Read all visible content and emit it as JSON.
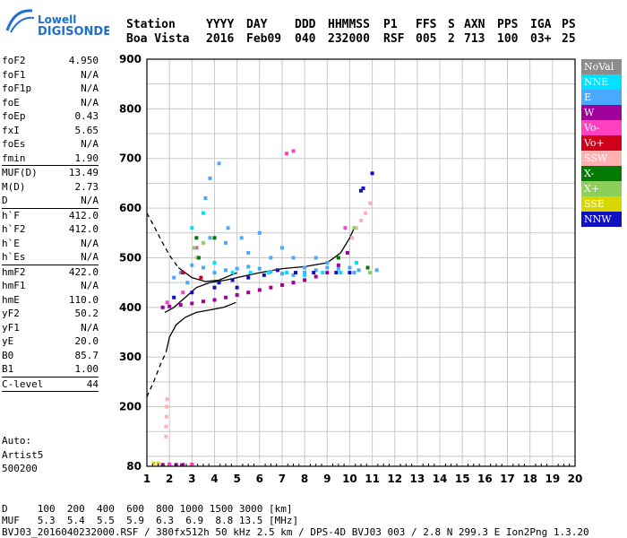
{
  "logo": {
    "line1": "Lowell",
    "line2": "DIGISONDE"
  },
  "header": {
    "labels": [
      "Station",
      "YYYY",
      "DAY",
      "DDD",
      "HHMMSS",
      "P1",
      "FFS",
      "S",
      "AXN",
      "PPS",
      "IGA",
      "PS"
    ],
    "values": [
      "Boa Vista",
      "2016",
      "Feb09",
      "040",
      "232000",
      "RSF",
      "005",
      "2",
      "713",
      "100",
      "03+",
      "25"
    ]
  },
  "params": [
    {
      "key": "foF2",
      "value": "4.950"
    },
    {
      "key": "foF1",
      "value": "N/A"
    },
    {
      "key": "foF1p",
      "value": "N/A"
    },
    {
      "key": "foE",
      "value": "N/A"
    },
    {
      "key": "foEp",
      "value": "0.43"
    },
    {
      "key": "fxI",
      "value": "5.65"
    },
    {
      "key": "foEs",
      "value": "N/A"
    },
    {
      "key": "fmin",
      "value": "1.90"
    },
    {
      "key": "MUF(D)",
      "value": "13.49"
    },
    {
      "key": "M(D)",
      "value": "2.73"
    },
    {
      "key": "D",
      "value": "N/A"
    },
    {
      "key": "h`F",
      "value": "412.0"
    },
    {
      "key": "h`F2",
      "value": "412.0"
    },
    {
      "key": "h`E",
      "value": "N/A"
    },
    {
      "key": "h`Es",
      "value": "N/A"
    },
    {
      "key": "hmF2",
      "value": "422.0"
    },
    {
      "key": "hmF1",
      "value": "N/A"
    },
    {
      "key": "hmE",
      "value": "110.0"
    },
    {
      "key": "yF2",
      "value": "50.2"
    },
    {
      "key": "yF1",
      "value": "N/A"
    },
    {
      "key": "yE",
      "value": "20.0"
    },
    {
      "key": "B0",
      "value": "85.7"
    },
    {
      "key": "B1",
      "value": "1.00"
    },
    {
      "key": "C-level",
      "value": "44"
    }
  ],
  "auto": {
    "line1": "Auto:",
    "line2": "Artist5",
    "line3": "500200"
  },
  "legend": [
    {
      "label": "NoVal",
      "color": "#8c8c8c"
    },
    {
      "label": "NNE",
      "color": "#00e0ff"
    },
    {
      "label": "E",
      "color": "#4aa8ff"
    },
    {
      "label": "W",
      "color": "#a0009a"
    },
    {
      "label": "Vo-",
      "color": "#ff40c0"
    },
    {
      "label": "Vo+",
      "color": "#d0001a"
    },
    {
      "label": "SSW",
      "color": "#ffb0b0"
    },
    {
      "label": "X-",
      "color": "#007a00"
    },
    {
      "label": "X+",
      "color": "#8cd05a"
    },
    {
      "label": "SSE",
      "color": "#d8d800"
    },
    {
      "label": "NNW",
      "color": "#1010c0"
    }
  ],
  "bottom": {
    "d_line": "D     100  200  400  600  800 1000 1500 3000 [km]",
    "muf_line": "MUF   5.3  5.4  5.5  5.9  6.3  6.9  8.8 13.5 [MHz]",
    "footer": "BVJ03_2016040232000.RSF / 380fx512h 50 kHz 2.5 km / DPS-4D BVJ03 003 / 2.8 N 299.3 E Ion2Png 1.3.20"
  },
  "chart_data": {
    "type": "scatter",
    "xlim": [
      1,
      20
    ],
    "ylim": [
      80,
      900
    ],
    "x_ticks": [
      1,
      2,
      3,
      4,
      5,
      6,
      7,
      8,
      9,
      10,
      11,
      12,
      13,
      14,
      15,
      16,
      17,
      18,
      19,
      20
    ],
    "y_ticks": [
      80,
      200,
      300,
      400,
      500,
      600,
      700,
      800,
      900
    ],
    "grid": true,
    "series": [
      {
        "name": "E",
        "color": "#4aa8ff",
        "points": [
          [
            2.5,
            470
          ],
          [
            3.0,
            485
          ],
          [
            3.5,
            480
          ],
          [
            4.0,
            470
          ],
          [
            4.5,
            475
          ],
          [
            5.0,
            478
          ],
          [
            5.5,
            482
          ],
          [
            6.0,
            478
          ],
          [
            6.5,
            472
          ],
          [
            7.0,
            468
          ],
          [
            7.5,
            465
          ],
          [
            8.0,
            470
          ],
          [
            8.5,
            475
          ],
          [
            9.0,
            480
          ],
          [
            9.5,
            478
          ],
          [
            10.0,
            480
          ],
          [
            10.4,
            475
          ],
          [
            3.2,
            520
          ],
          [
            3.8,
            540
          ],
          [
            4.5,
            530
          ],
          [
            5.5,
            510
          ],
          [
            6.5,
            500
          ],
          [
            8.5,
            500
          ],
          [
            9.5,
            500
          ],
          [
            3.6,
            620
          ],
          [
            3.8,
            660
          ],
          [
            4.2,
            690
          ],
          [
            4.6,
            560
          ],
          [
            5.2,
            540
          ],
          [
            6.0,
            550
          ],
          [
            7.0,
            520
          ],
          [
            9.0,
            490
          ],
          [
            10.2,
            470
          ],
          [
            11.2,
            475
          ],
          [
            7.5,
            500
          ],
          [
            8.0,
            480
          ],
          [
            2.8,
            450
          ],
          [
            2.2,
            460
          ]
        ]
      },
      {
        "name": "NNE",
        "color": "#00e0ff",
        "points": [
          [
            3.3,
            500
          ],
          [
            4.0,
            490
          ],
          [
            4.8,
            470
          ],
          [
            5.6,
            470
          ],
          [
            6.4,
            470
          ],
          [
            7.2,
            470
          ],
          [
            8.0,
            465
          ],
          [
            8.8,
            470
          ],
          [
            9.6,
            470
          ],
          [
            10.3,
            490
          ],
          [
            3.0,
            560
          ],
          [
            3.5,
            590
          ]
        ]
      },
      {
        "name": "W",
        "color": "#a0009a",
        "points": [
          [
            1.7,
            400
          ],
          [
            2.0,
            402
          ],
          [
            2.5,
            405
          ],
          [
            3.0,
            408
          ],
          [
            3.5,
            412
          ],
          [
            4.0,
            415
          ],
          [
            4.5,
            420
          ],
          [
            5.0,
            425
          ],
          [
            5.5,
            430
          ],
          [
            6.0,
            435
          ],
          [
            6.5,
            440
          ],
          [
            7.0,
            445
          ],
          [
            7.5,
            450
          ],
          [
            8.0,
            455
          ],
          [
            8.5,
            462
          ],
          [
            9.0,
            470
          ],
          [
            9.5,
            485
          ],
          [
            9.9,
            510
          ],
          [
            1.7,
            83
          ],
          [
            2.0,
            83
          ],
          [
            2.3,
            83
          ],
          [
            2.6,
            83
          ],
          [
            3.0,
            83
          ]
        ]
      },
      {
        "name": "Vo-",
        "color": "#ff40c0",
        "points": [
          [
            1.9,
            410
          ],
          [
            2.6,
            430
          ],
          [
            3.2,
            520
          ],
          [
            7.2,
            710
          ],
          [
            7.5,
            715
          ],
          [
            9.8,
            560
          ],
          [
            2.0,
            84
          ],
          [
            3.0,
            84
          ]
        ]
      },
      {
        "name": "Vo+",
        "color": "#d0001a",
        "points": [
          [
            2.6,
            470
          ],
          [
            3.4,
            460
          ]
        ]
      },
      {
        "name": "SSW",
        "color": "#ffb0b0",
        "points": [
          [
            1.85,
            140
          ],
          [
            1.85,
            160
          ],
          [
            1.87,
            180
          ],
          [
            1.88,
            200
          ],
          [
            1.9,
            215
          ],
          [
            10.1,
            540
          ],
          [
            10.3,
            560
          ],
          [
            10.5,
            575
          ],
          [
            10.7,
            590
          ],
          [
            10.9,
            610
          ],
          [
            3.2,
            500
          ]
        ]
      },
      {
        "name": "X-",
        "color": "#007a00",
        "points": [
          [
            3.2,
            540
          ],
          [
            4.0,
            540
          ],
          [
            3.3,
            500
          ],
          [
            10.8,
            480
          ],
          [
            9.5,
            500
          ]
        ]
      },
      {
        "name": "X+",
        "color": "#8cd05a",
        "points": [
          [
            3.1,
            520
          ],
          [
            3.5,
            530
          ],
          [
            10.9,
            470
          ],
          [
            10.2,
            560
          ]
        ]
      },
      {
        "name": "SSE",
        "color": "#d8d800",
        "points": [
          [
            1.3,
            86
          ],
          [
            1.5,
            86
          ]
        ]
      },
      {
        "name": "NNW",
        "color": "#1010c0",
        "points": [
          [
            2.2,
            420
          ],
          [
            3.0,
            430
          ],
          [
            4.0,
            440
          ],
          [
            4.8,
            455
          ],
          [
            5.5,
            460
          ],
          [
            6.2,
            465
          ],
          [
            6.8,
            475
          ],
          [
            7.6,
            470
          ],
          [
            8.4,
            470
          ],
          [
            9.4,
            470
          ],
          [
            10.0,
            470
          ],
          [
            10.5,
            635
          ],
          [
            10.6,
            640
          ],
          [
            11.0,
            670
          ],
          [
            4.2,
            450
          ],
          [
            5.0,
            440
          ]
        ]
      }
    ],
    "curves": [
      {
        "kind": "solid",
        "color": "#000000",
        "points": [
          [
            1.85,
            310
          ],
          [
            2.0,
            340
          ],
          [
            2.3,
            365
          ],
          [
            2.7,
            380
          ],
          [
            3.2,
            390
          ],
          [
            3.8,
            395
          ],
          [
            4.4,
            400
          ],
          [
            4.95,
            410
          ]
        ]
      },
      {
        "kind": "dashed",
        "color": "#000000",
        "points": [
          [
            1.0,
            220
          ],
          [
            1.3,
            250
          ],
          [
            1.6,
            285
          ],
          [
            1.85,
            310
          ]
        ]
      },
      {
        "kind": "dashed",
        "color": "#000000",
        "points": [
          [
            1.0,
            590
          ],
          [
            1.3,
            565
          ],
          [
            1.7,
            530
          ],
          [
            2.0,
            505
          ],
          [
            2.4,
            480
          ]
        ]
      },
      {
        "kind": "solid",
        "color": "#000000",
        "points": [
          [
            2.4,
            480
          ],
          [
            3.0,
            460
          ],
          [
            3.6,
            452
          ],
          [
            4.2,
            455
          ],
          [
            5.0,
            470
          ]
        ]
      },
      {
        "kind": "solid",
        "color": "#000000",
        "points": [
          [
            1.8,
            390
          ],
          [
            2.2,
            400
          ],
          [
            2.7,
            420
          ],
          [
            3.2,
            440
          ],
          [
            3.8,
            450
          ],
          [
            4.5,
            455
          ],
          [
            5.0,
            460
          ],
          [
            6.0,
            470
          ],
          [
            7.0,
            478
          ],
          [
            8.0,
            482
          ],
          [
            9.0,
            490
          ],
          [
            9.6,
            510
          ],
          [
            10.0,
            540
          ],
          [
            10.2,
            560
          ]
        ]
      }
    ]
  }
}
